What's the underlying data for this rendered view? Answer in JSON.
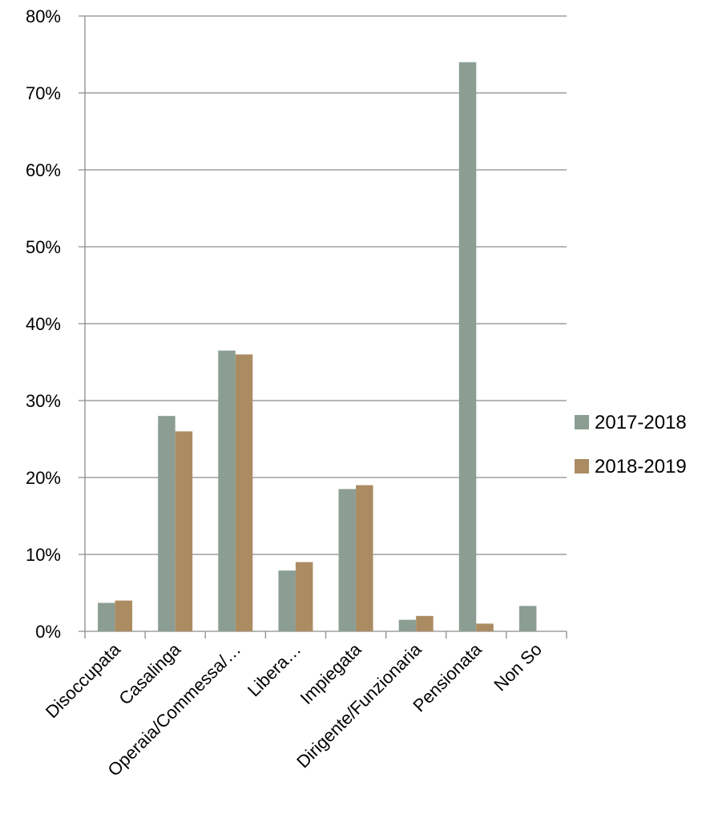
{
  "chart_data": {
    "type": "bar",
    "categories": [
      "Disoccupata",
      "Casalinga",
      "Operaia/Commessa/…",
      "Libera…",
      "Impiegata",
      "Dirigente/Funzionaria",
      "Pensionata",
      "Non So"
    ],
    "series": [
      {
        "name": "2017-2018",
        "color": "#8c9e94",
        "values": [
          3.7,
          28.0,
          36.5,
          7.9,
          18.5,
          1.5,
          74.0,
          3.3
        ]
      },
      {
        "name": "2018-2019",
        "color": "#ab8c62",
        "values": [
          4.0,
          26.0,
          36.0,
          9.0,
          19.0,
          2.0,
          1.0,
          0
        ]
      }
    ],
    "yticks": [
      "0%",
      "10%",
      "20%",
      "30%",
      "40%",
      "50%",
      "60%",
      "70%",
      "80%"
    ],
    "ylim": [
      0,
      80
    ],
    "grid": true,
    "legend_position": "right",
    "title": "",
    "xlabel": "",
    "ylabel": ""
  }
}
